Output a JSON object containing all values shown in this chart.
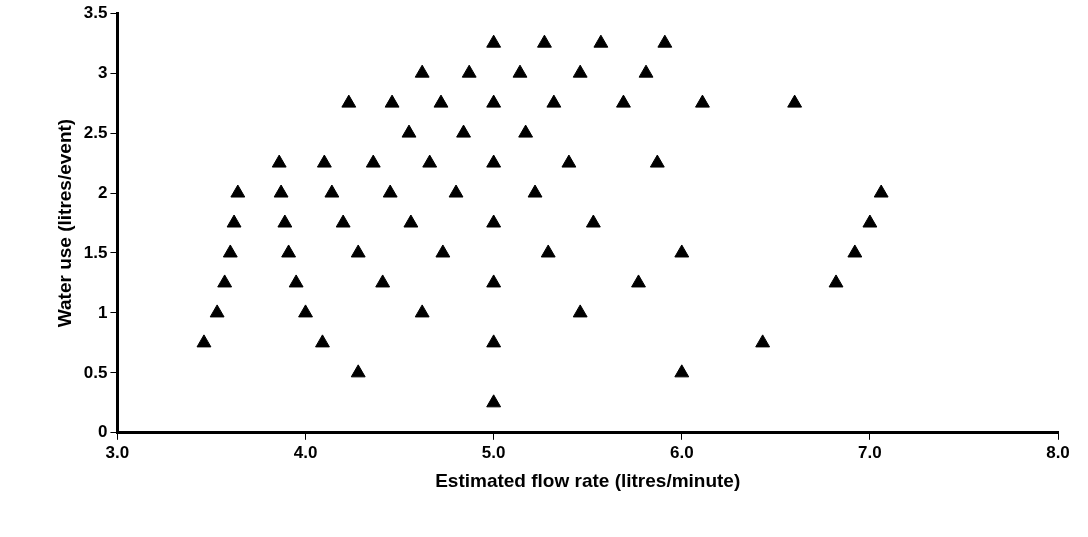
{
  "chart_data": {
    "type": "scatter",
    "xlabel": "Estimated flow rate (litres/minute)",
    "ylabel": "Water use (litres/event)",
    "marker": "triangle",
    "grid": false,
    "legend": false,
    "xlim": [
      3,
      8
    ],
    "xticks": [
      {
        "value": 3,
        "label": "3.0"
      },
      {
        "value": 4,
        "label": "4.0"
      },
      {
        "value": 5,
        "label": "5.0"
      },
      {
        "value": 6,
        "label": "6.0"
      },
      {
        "value": 7,
        "label": "7.0"
      },
      {
        "value": 8,
        "label": "8.0"
      }
    ],
    "ylim": [
      0,
      3.5
    ],
    "yticks": [
      0,
      0.5,
      1,
      1.5,
      2,
      2.5,
      3,
      3.5
    ],
    "series": [
      {
        "color": "#000000",
        "x": [
          5.0,
          5.27,
          5.57,
          5.91,
          4.62,
          4.87,
          5.14,
          5.46,
          5.81,
          4.23,
          4.46,
          4.72,
          5.0,
          5.32,
          5.69,
          6.11,
          6.6,
          4.55,
          4.84,
          5.17,
          3.86,
          4.1,
          4.36,
          4.66,
          5.0,
          5.4,
          5.87,
          3.64,
          3.87,
          4.14,
          4.45,
          4.8,
          5.22,
          7.06,
          3.62,
          3.89,
          4.2,
          4.56,
          5.0,
          5.53,
          7.0,
          3.6,
          3.91,
          4.28,
          4.73,
          5.29,
          6.0,
          6.92,
          3.57,
          3.95,
          4.41,
          5.0,
          5.77,
          6.82,
          3.53,
          4.0,
          4.62,
          5.46,
          3.46,
          4.09,
          5.0,
          6.43,
          4.28,
          6.0,
          5.0
        ],
        "values": [
          3.25,
          3.25,
          3.25,
          3.25,
          3,
          3,
          3,
          3,
          3,
          2.75,
          2.75,
          2.75,
          2.75,
          2.75,
          2.75,
          2.75,
          2.75,
          2.5,
          2.5,
          2.5,
          2.25,
          2.25,
          2.25,
          2.25,
          2.25,
          2.25,
          2.25,
          2,
          2,
          2,
          2,
          2,
          2,
          2,
          1.75,
          1.75,
          1.75,
          1.75,
          1.75,
          1.75,
          1.75,
          1.5,
          1.5,
          1.5,
          1.5,
          1.5,
          1.5,
          1.5,
          1.25,
          1.25,
          1.25,
          1.25,
          1.25,
          1.25,
          1,
          1,
          1,
          1,
          0.75,
          0.75,
          0.75,
          0.75,
          0.5,
          0.5,
          0.25
        ]
      }
    ]
  }
}
